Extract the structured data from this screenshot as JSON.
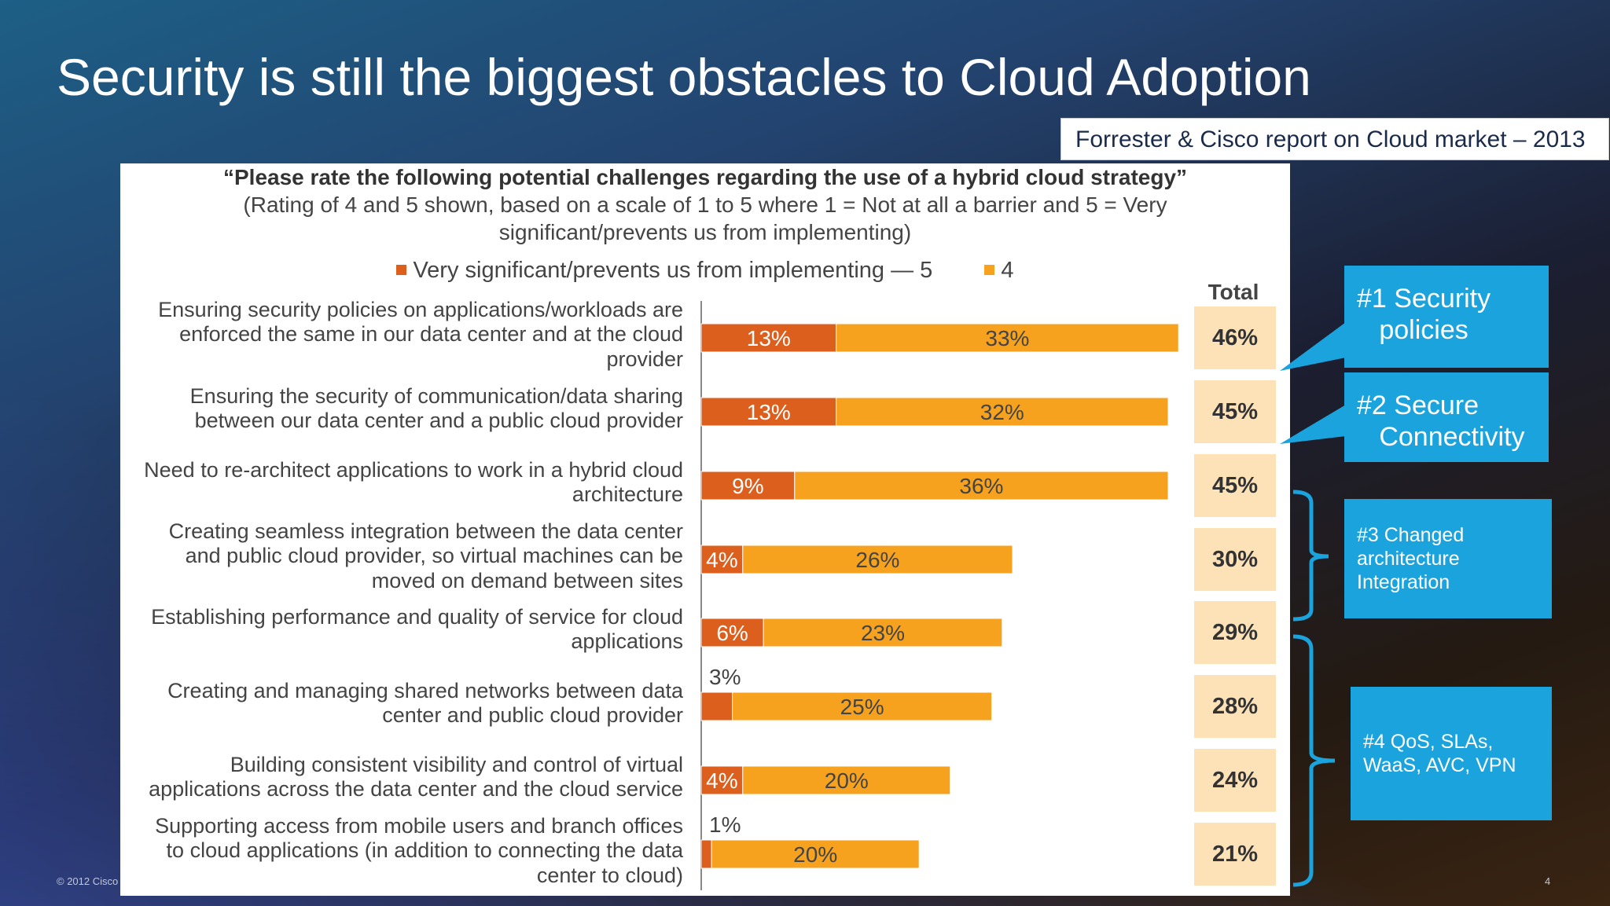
{
  "slide_title": "Security is still the biggest obstacles to Cloud Adoption",
  "source_note": "Forrester & Cisco report on Cloud market – 2013",
  "question": {
    "line1": "“Please rate the following potential challenges regarding the use of a hybrid cloud strategy”",
    "line2": "(Rating of 4 and 5 shown, based on a scale of 1 to 5 where 1 = Not at all a barrier and 5 = Very",
    "line3": "significant/prevents us from implementing)"
  },
  "total_header": "Total",
  "colors": {
    "series5": "#dd5f1e",
    "series4": "#f7a21f",
    "total_box": "#fde2b8",
    "callout": "#1aa3dd"
  },
  "chart_data": {
    "type": "bar",
    "orientation": "horizontal",
    "stacked": true,
    "title": "“Please rate the following potential challenges regarding the use of a hybrid cloud strategy”",
    "categories": [
      "Ensuring security policies on applications/workloads are enforced the same in our data center and at the cloud provider",
      "Ensuring the security of communication/data sharing between our data center and a public cloud provider",
      "Need to re-architect applications to work in a hybrid cloud architecture",
      "Creating seamless integration between the data center and public cloud provider, so virtual machines can be moved on demand between sites",
      "Establishing performance and quality of service for cloud applications",
      "Creating and managing shared networks between data center and public cloud provider",
      "Building consistent visibility and control of virtual applications across the data center and the cloud service",
      "Supporting access from mobile users and branch offices to cloud applications (in addition to connecting the data center to cloud)"
    ],
    "category_lines": [
      [
        "Ensuring security policies on applications/workloads are",
        "enforced the same in our data center and at the cloud",
        "provider"
      ],
      [
        "Ensuring the security of communication/data sharing",
        "between our data center and a public cloud provider"
      ],
      [
        "Need to re-architect applications to work in a hybrid cloud",
        "architecture"
      ],
      [
        "Creating seamless integration between the data center",
        "and public cloud provider, so virtual machines can be",
        "moved on demand between sites"
      ],
      [
        "Establishing performance and quality of service for cloud",
        "applications"
      ],
      [
        "Creating and managing shared networks between data",
        "center and public cloud provider"
      ],
      [
        "Building consistent visibility and control of virtual",
        "applications across the data center and the cloud service"
      ],
      [
        "Supporting access from mobile users and branch offices",
        "to cloud applications (in addition to connecting the data",
        "center to cloud)"
      ]
    ],
    "series": [
      {
        "name": "Very significant/prevents us from implementing — 5",
        "values": [
          13,
          13,
          9,
          4,
          6,
          3,
          4,
          1
        ],
        "labels": [
          "13%",
          "13%",
          "9%",
          "4%",
          "6%",
          "3%",
          "4%",
          "1%"
        ]
      },
      {
        "name": "4",
        "values": [
          33,
          32,
          36,
          26,
          23,
          25,
          20,
          20
        ],
        "labels": [
          "33%",
          "32%",
          "36%",
          "26%",
          "23%",
          "25%",
          "20%",
          "20%"
        ]
      }
    ],
    "totals": [
      "46%",
      "45%",
      "45%",
      "30%",
      "29%",
      "28%",
      "24%",
      "21%"
    ],
    "legend_position": "top",
    "grid": false
  },
  "callouts": [
    {
      "text": "#1 Security\n   policies"
    },
    {
      "text": "#2 Secure\n   Connectivity"
    },
    {
      "text": "#3 Changed\narchitecture\nIntegration"
    },
    {
      "text": "#4 QoS, SLAs,\nWaaS, AVC, VPN"
    }
  ],
  "footer": {
    "copyright": "© 2012 Cisco",
    "page": "4"
  }
}
